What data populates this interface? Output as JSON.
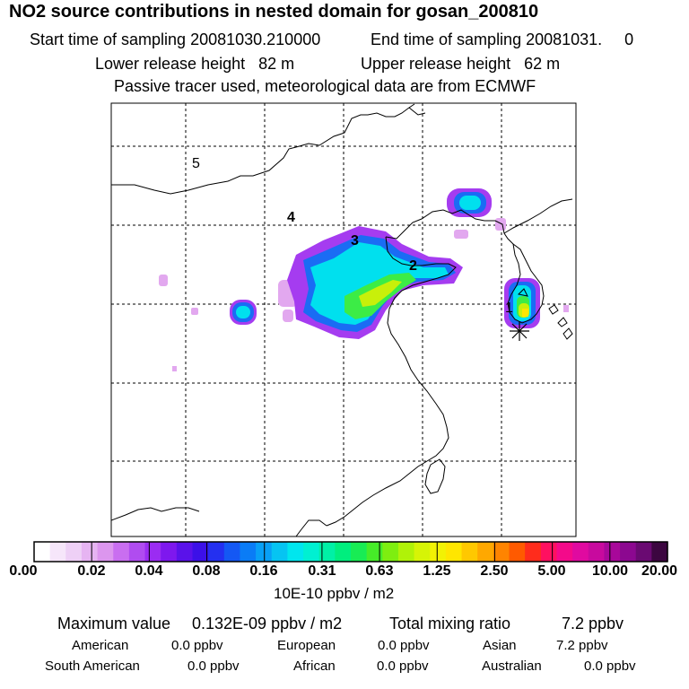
{
  "header": {
    "title": "NO2 source contributions in nested domain for gosan_200810",
    "start_label": "Start time of sampling 20081030.210000",
    "end_label": "End time of sampling 20081031.     0",
    "lower_label": "Lower release height   82 m",
    "upper_label": "Upper release height   62 m",
    "tracer_note": "Passive tracer used, meteorological data are from ECMWF"
  },
  "map": {
    "region_labels": [
      "1",
      "2",
      "3",
      "4",
      "5"
    ],
    "receptor": "Gosan"
  },
  "colorbar": {
    "ticks": [
      "0.00",
      "0.02",
      "0.04",
      "0.08",
      "0.16",
      "0.31",
      "0.63",
      "1.25",
      "2.50",
      "5.00",
      "10.00",
      "20.00"
    ],
    "colors": [
      "#ffffff",
      "#f6e6fa",
      "#eed0f6",
      "#e6b4f2",
      "#dc96ee",
      "#c96ef0",
      "#b04cf0",
      "#9b2cf2",
      "#7e18ee",
      "#5a12ea",
      "#3c10e8",
      "#2430f0",
      "#1458f4",
      "#0a7cf6",
      "#08a0f6",
      "#06c4f2",
      "#00e6ee",
      "#00f0d2",
      "#00f0a6",
      "#00ee7e",
      "#18ec54",
      "#46ec28",
      "#7eee10",
      "#b0f208",
      "#d6f406",
      "#f2f204",
      "#ffe600",
      "#ffc800",
      "#ffa800",
      "#ff8400",
      "#ff5a00",
      "#ff2c1c",
      "#ff1060",
      "#f40a8a",
      "#e00aa0",
      "#c80a9e",
      "#a8089a",
      "#8c0890",
      "#6a0a72",
      "#3c0640"
    ],
    "units": "10E-10 ppbv / m2"
  },
  "summary": {
    "max_label": "Maximum value",
    "max_value": "0.132E-09 ppbv / m2",
    "total_label": "Total mixing ratio",
    "total_value": "7.2 ppbv",
    "regions": [
      {
        "name": "American",
        "value": "0.0 ppbv"
      },
      {
        "name": "European",
        "value": "0.0 ppbv"
      },
      {
        "name": "Asian",
        "value": "7.2 ppbv"
      },
      {
        "name": "South American",
        "value": "0.0 ppbv"
      },
      {
        "name": "African",
        "value": "0.0 ppbv"
      },
      {
        "name": "Australian",
        "value": "0.0 ppbv"
      }
    ]
  }
}
